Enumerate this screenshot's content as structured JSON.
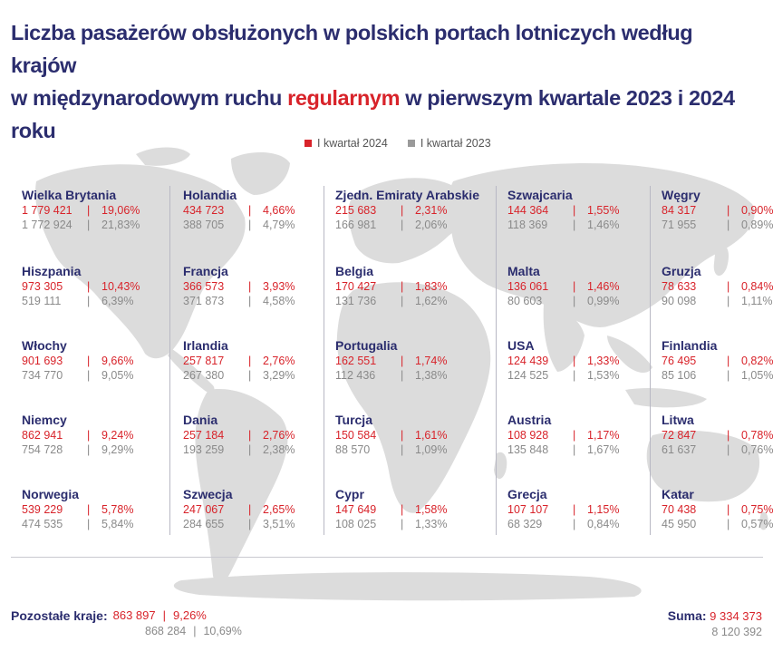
{
  "title": {
    "line1": "Liczba pasażerów obsłużonych w polskich portach lotniczych według krajów",
    "line2_before": "w międzynarodowym ruchu ",
    "line2_highlight": "regularnym",
    "line2_after": " w pierwszym kwartale 2023 i 2024 roku"
  },
  "legend": [
    {
      "label": "I kwartał 2024",
      "color": "#d8232a"
    },
    {
      "label": "I kwartał 2023",
      "color": "#9a9a9a"
    }
  ],
  "chart_data": {
    "type": "table",
    "series": [
      {
        "name": "I kwartał 2024",
        "color": "#d8232a"
      },
      {
        "name": "I kwartał 2023",
        "color": "#9a9a9a"
      }
    ],
    "countries": [
      {
        "name": "Wielka Brytania",
        "v2024": "1 779 421",
        "p2024": "19,06%",
        "v2023": "1 772 924",
        "p2023": "21,83%"
      },
      {
        "name": "Hiszpania",
        "v2024": "973 305",
        "p2024": "10,43%",
        "v2023": "519 111",
        "p2023": "6,39%"
      },
      {
        "name": "Włochy",
        "v2024": "901 693",
        "p2024": "9,66%",
        "v2023": "734 770",
        "p2023": "9,05%"
      },
      {
        "name": "Niemcy",
        "v2024": "862 941",
        "p2024": "9,24%",
        "v2023": "754 728",
        "p2023": "9,29%"
      },
      {
        "name": "Norwegia",
        "v2024": "539 229",
        "p2024": "5,78%",
        "v2023": "474 535",
        "p2023": "5,84%"
      },
      {
        "name": "Holandia",
        "v2024": "434 723",
        "p2024": "4,66%",
        "v2023": "388 705",
        "p2023": "4,79%"
      },
      {
        "name": "Francja",
        "v2024": "366 573",
        "p2024": "3,93%",
        "v2023": "371 873",
        "p2023": "4,58%"
      },
      {
        "name": "Irlandia",
        "v2024": "257 817",
        "p2024": "2,76%",
        "v2023": "267 380",
        "p2023": "3,29%"
      },
      {
        "name": "Dania",
        "v2024": "257 184",
        "p2024": "2,76%",
        "v2023": "193 259",
        "p2023": "2,38%"
      },
      {
        "name": "Szwecja",
        "v2024": "247 067",
        "p2024": "2,65%",
        "v2023": "284 655",
        "p2023": "3,51%"
      },
      {
        "name": "Zjedn. Emiraty Arabskie",
        "v2024": "215 683",
        "p2024": "2,31%",
        "v2023": "166 981",
        "p2023": "2,06%"
      },
      {
        "name": "Belgia",
        "v2024": "170 427",
        "p2024": "1,83%",
        "v2023": "131 736",
        "p2023": "1,62%"
      },
      {
        "name": "Portugalia",
        "v2024": "162 551",
        "p2024": "1,74%",
        "v2023": "112 436",
        "p2023": "1,38%"
      },
      {
        "name": "Turcja",
        "v2024": "150 584",
        "p2024": "1,61%",
        "v2023": "88 570",
        "p2023": "1,09%"
      },
      {
        "name": "Cypr",
        "v2024": "147 649",
        "p2024": "1,58%",
        "v2023": "108 025",
        "p2023": "1,33%"
      },
      {
        "name": "Szwajcaria",
        "v2024": "144 364",
        "p2024": "1,55%",
        "v2023": "118 369",
        "p2023": "1,46%"
      },
      {
        "name": "Malta",
        "v2024": "136 061",
        "p2024": "1,46%",
        "v2023": "80 603",
        "p2023": "0,99%"
      },
      {
        "name": "USA",
        "v2024": "124 439",
        "p2024": "1,33%",
        "v2023": "124 525",
        "p2023": "1,53%"
      },
      {
        "name": "Austria",
        "v2024": "108 928",
        "p2024": "1,17%",
        "v2023": "135 848",
        "p2023": "1,67%"
      },
      {
        "name": "Grecja",
        "v2024": "107 107",
        "p2024": "1,15%",
        "v2023": "68 329",
        "p2023": "0,84%"
      },
      {
        "name": "Węgry",
        "v2024": "84 317",
        "p2024": "0,90%",
        "v2023": "71 955",
        "p2023": "0,89%"
      },
      {
        "name": "Gruzja",
        "v2024": "78 633",
        "p2024": "0,84%",
        "v2023": "90 098",
        "p2023": "1,11%"
      },
      {
        "name": "Finlandia",
        "v2024": "76 495",
        "p2024": "0,82%",
        "v2023": "85 106",
        "p2023": "1,05%"
      },
      {
        "name": "Litwa",
        "v2024": "72 847",
        "p2024": "0,78%",
        "v2023": "61 637",
        "p2023": "0,76%"
      },
      {
        "name": "Katar",
        "v2024": "70 438",
        "p2024": "0,75%",
        "v2023": "45 950",
        "p2023": "0,57%"
      }
    ],
    "others": {
      "label": "Pozostałe kraje:",
      "v2024": "863 897",
      "p2024": "9,26%",
      "v2023": "868 284",
      "p2023": "10,69%"
    },
    "total": {
      "label": "Suma:",
      "v2024": "9 334 373",
      "v2023": "8 120 392"
    }
  },
  "separator": "|"
}
